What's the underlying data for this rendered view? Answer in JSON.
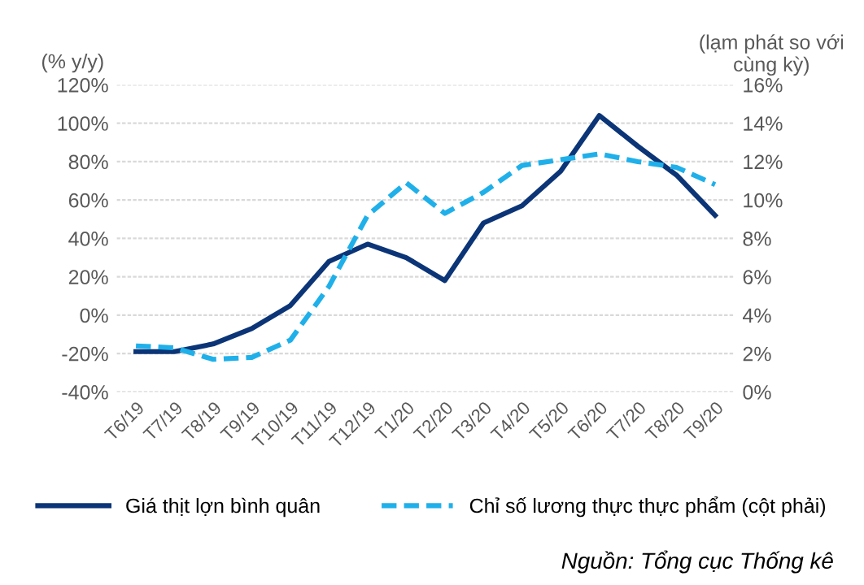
{
  "chart_data": {
    "type": "line",
    "ylabel": "(% y/y)",
    "y2label": "(lạm phát so với\ncùng kỳ)",
    "categories": [
      "T6/19",
      "T7/19",
      "T8/19",
      "T9/19",
      "T10/19",
      "T11/19",
      "T12/19",
      "T1/20",
      "T2/20",
      "T3/20",
      "T4/20",
      "T5/20",
      "T6/20",
      "T7/20",
      "T8/20",
      "T9/20"
    ],
    "series": [
      {
        "name": "Giá thịt lợn bình quân",
        "color": "#0b3577",
        "line_style": "solid",
        "values": [
          -19,
          -19,
          -15,
          -7,
          5,
          28,
          37,
          30,
          18,
          48,
          57,
          75,
          104,
          88,
          73,
          52
        ]
      },
      {
        "name": "Chỉ số lương thực thực phẩm (cột phải)",
        "color": "#1fb0ea",
        "line_style": "dashed",
        "axis": "y2",
        "values": [
          2.4,
          2.3,
          1.7,
          1.8,
          2.7,
          5.5,
          9.2,
          10.9,
          9.3,
          10.4,
          11.8,
          12.1,
          12.4,
          12.0,
          11.7,
          10.8
        ]
      }
    ],
    "ylim": [
      -40,
      120
    ],
    "yticks": [
      {
        "value": -40,
        "label": "-40%"
      },
      {
        "value": -20,
        "label": "-20%"
      },
      {
        "value": 0,
        "label": "0%"
      },
      {
        "value": 20,
        "label": "20%"
      },
      {
        "value": 40,
        "label": "40%"
      },
      {
        "value": 60,
        "label": "60%"
      },
      {
        "value": 80,
        "label": "80%"
      },
      {
        "value": 100,
        "label": "100%"
      },
      {
        "value": 120,
        "label": "120%"
      }
    ],
    "y2lim": [
      0,
      16
    ],
    "y2ticks": [
      {
        "value": 0,
        "label": "0%"
      },
      {
        "value": 2,
        "label": "2%"
      },
      {
        "value": 4,
        "label": "4%"
      },
      {
        "value": 6,
        "label": "6%"
      },
      {
        "value": 8,
        "label": "8%"
      },
      {
        "value": 10,
        "label": "10%"
      },
      {
        "value": 12,
        "label": "12%"
      },
      {
        "value": 14,
        "label": "14%"
      },
      {
        "value": 16,
        "label": "16%"
      }
    ],
    "grid": "y",
    "legend": "bottom",
    "marker": "none",
    "annotations": [
      "Nguồn: Tổng cục Thống kê"
    ]
  }
}
